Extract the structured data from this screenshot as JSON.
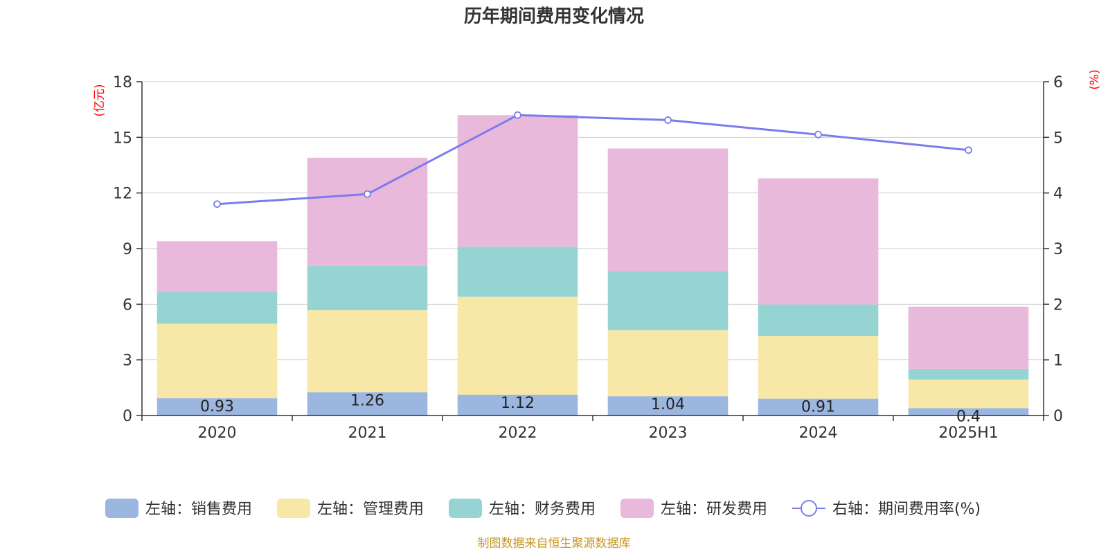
{
  "chart_data": {
    "type": "bar",
    "title": "历年期间费用变化情况",
    "categories": [
      "2020",
      "2021",
      "2022",
      "2023",
      "2024",
      "2025H1"
    ],
    "y_left": {
      "unit": "(亿元)",
      "ylim": [
        0,
        18
      ],
      "ticks": [
        0,
        3,
        6,
        9,
        12,
        15,
        18
      ]
    },
    "y_right": {
      "unit": "(%)",
      "ylim": [
        0,
        6
      ],
      "ticks": [
        0,
        1,
        2,
        3,
        4,
        5,
        6
      ]
    },
    "series": [
      {
        "name": "左轴：销售费用",
        "type": "bar",
        "stack": "left",
        "color": "#9bb7e0",
        "values": [
          0.93,
          1.26,
          1.12,
          1.04,
          0.91,
          0.4
        ],
        "labels": [
          "0.93",
          "1.26",
          "1.12",
          "1.04",
          "0.91",
          "0.4"
        ]
      },
      {
        "name": "左轴：管理费用",
        "type": "bar",
        "stack": "left",
        "color": "#f7e8a8",
        "values": [
          4.02,
          4.42,
          5.28,
          3.56,
          3.38,
          1.54
        ]
      },
      {
        "name": "左轴：财务费用",
        "type": "bar",
        "stack": "left",
        "color": "#96d4d4",
        "values": [
          1.7,
          2.4,
          2.7,
          3.2,
          1.7,
          0.57
        ]
      },
      {
        "name": "左轴：研发费用",
        "type": "bar",
        "stack": "left",
        "color": "#e8b9da",
        "values": [
          2.75,
          5.82,
          7.1,
          6.6,
          6.8,
          3.36
        ]
      },
      {
        "name": "右轴：期间费用率(%)",
        "type": "line",
        "axis": "right",
        "color": "#7b7bf0",
        "values": [
          3.8,
          3.98,
          5.4,
          5.31,
          5.05,
          4.77
        ]
      }
    ],
    "grid": true,
    "legend_position": "bottom"
  },
  "footer": {
    "source": "制图数据来自恒生聚源数据库"
  }
}
